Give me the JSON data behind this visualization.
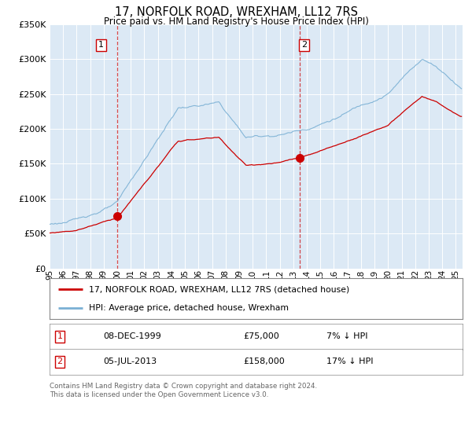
{
  "title": "17, NORFOLK ROAD, WREXHAM, LL12 7RS",
  "subtitle": "Price paid vs. HM Land Registry's House Price Index (HPI)",
  "legend_line1": "17, NORFOLK ROAD, WREXHAM, LL12 7RS (detached house)",
  "legend_line2": "HPI: Average price, detached house, Wrexham",
  "footnote": "Contains HM Land Registry data © Crown copyright and database right 2024.\nThis data is licensed under the Open Government Licence v3.0.",
  "table1": [
    "1",
    "08-DEC-1999",
    "£75,000",
    "7% ↓ HPI"
  ],
  "table2": [
    "2",
    "05-JUL-2013",
    "£158,000",
    "17% ↓ HPI"
  ],
  "ylim": [
    0,
    350000
  ],
  "yticks": [
    0,
    50000,
    100000,
    150000,
    200000,
    250000,
    300000,
    350000
  ],
  "ytick_labels": [
    "£0",
    "£50K",
    "£100K",
    "£150K",
    "£200K",
    "£250K",
    "£300K",
    "£350K"
  ],
  "plot_bg": "#dce9f5",
  "line_color_red": "#cc0000",
  "line_color_blue": "#7ab0d4",
  "grid_color": "#ffffff",
  "ann_color": "#cc0000",
  "ann1_x": 2000.0,
  "ann1_y": 75000,
  "ann2_x": 2013.5,
  "ann2_y": 158000,
  "xlim_start": 1995.0,
  "xlim_end": 2025.5,
  "xtick_years": [
    1995,
    1996,
    1997,
    1998,
    1999,
    2000,
    2001,
    2002,
    2003,
    2004,
    2005,
    2006,
    2007,
    2008,
    2009,
    2010,
    2011,
    2012,
    2013,
    2014,
    2015,
    2016,
    2017,
    2018,
    2019,
    2020,
    2021,
    2022,
    2023,
    2024,
    2025
  ]
}
